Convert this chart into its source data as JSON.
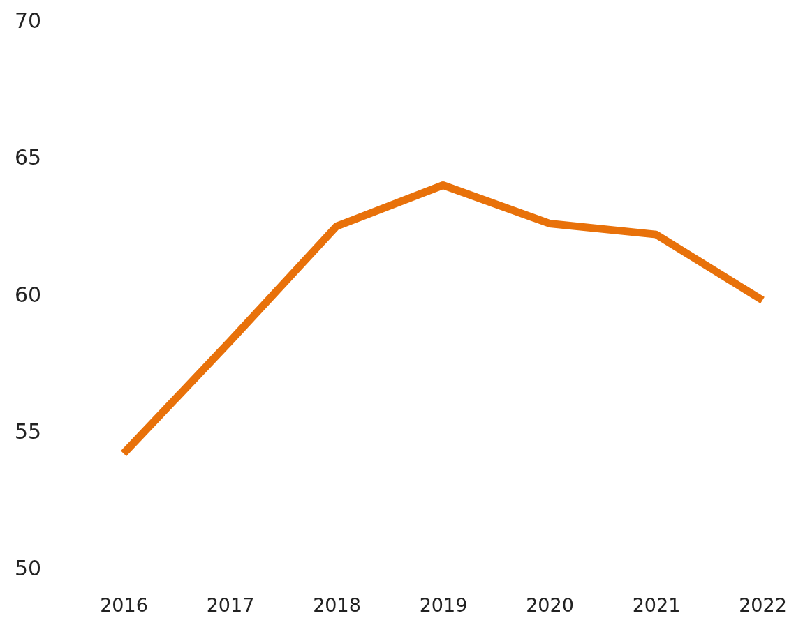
{
  "chart_data": {
    "type": "line",
    "categories": [
      "2016",
      "2017",
      "2018",
      "2019",
      "2020",
      "2021",
      "2022"
    ],
    "series": [
      {
        "color": "#e8710a",
        "values": [
          54.2,
          58.3,
          62.5,
          64.0,
          62.6,
          62.2,
          59.8
        ]
      }
    ],
    "ylim": [
      50,
      70
    ],
    "yticks": [
      50,
      55,
      60,
      65,
      70
    ],
    "grid": false,
    "marker": "none",
    "line_style": "solid"
  }
}
